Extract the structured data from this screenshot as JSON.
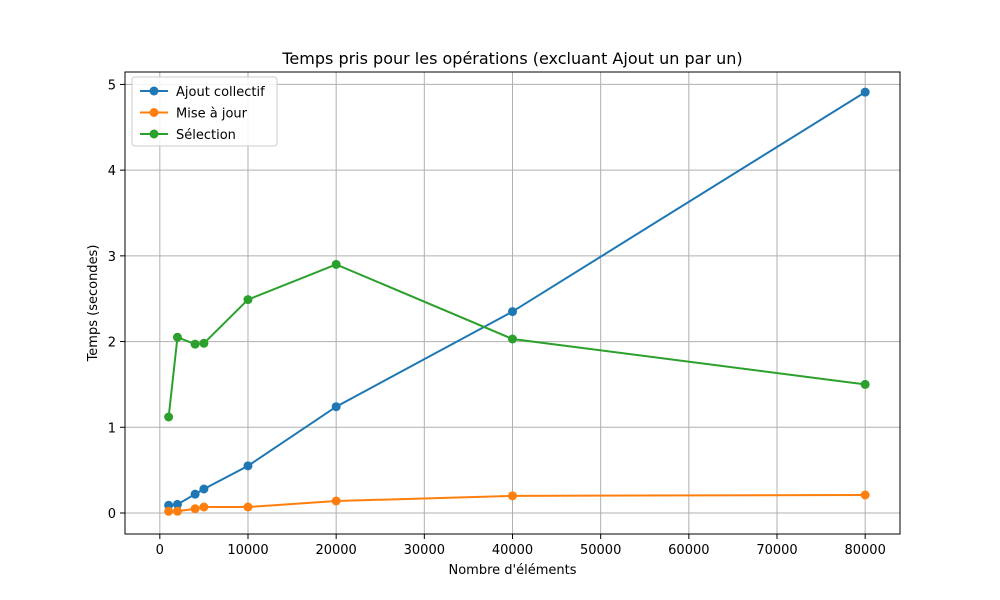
{
  "chart_data": {
    "type": "line",
    "title": "Temps pris pour les opérations (excluant Ajout un par un)",
    "xlabel": "Nombre d'éléments",
    "ylabel": "Temps (secondes)",
    "xlim": [
      -3950,
      83950
    ],
    "ylim": [
      -0.245,
      5.145
    ],
    "xticks": [
      0,
      10000,
      20000,
      30000,
      40000,
      50000,
      60000,
      70000,
      80000
    ],
    "yticks": [
      0,
      1,
      2,
      3,
      4,
      5
    ],
    "grid": true,
    "legend_position": "top-left",
    "x": [
      1000,
      2000,
      4000,
      5000,
      10000,
      20000,
      40000,
      80000
    ],
    "series": [
      {
        "name": "Ajout collectif",
        "color": "#1f77b4",
        "values": [
          0.09,
          0.1,
          0.22,
          0.28,
          0.55,
          1.24,
          2.35,
          4.91
        ]
      },
      {
        "name": "Mise à jour",
        "color": "#ff7f0e",
        "values": [
          0.02,
          0.02,
          0.05,
          0.07,
          0.07,
          0.14,
          0.2,
          0.21
        ]
      },
      {
        "name": "Sélection",
        "color": "#2ca02c",
        "values": [
          1.12,
          2.05,
          1.97,
          1.98,
          2.49,
          2.9,
          2.03,
          1.5
        ]
      }
    ]
  }
}
